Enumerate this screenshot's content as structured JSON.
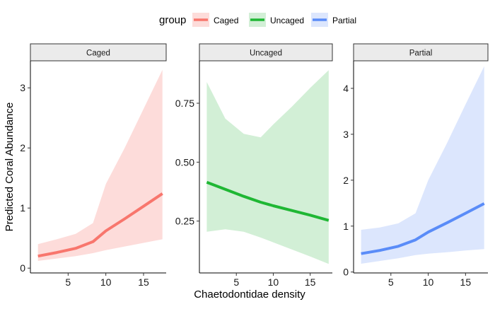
{
  "legend": {
    "title": "group",
    "items": [
      {
        "label": "Caged",
        "color": "#F8766D",
        "fill": "#FDDCDA"
      },
      {
        "label": "Uncaged",
        "color": "#1FB734",
        "fill": "#D2EFD6"
      },
      {
        "label": "Partial",
        "color": "#5A8CF8",
        "fill": "#DCE6FD"
      }
    ]
  },
  "ylabel": "Predicted Coral Abundance",
  "xlabel": "Chaetodontidae density",
  "chart_data": [
    {
      "type": "line",
      "panel": "Caged",
      "color": "#F8766D",
      "fill": "#FDDCDA",
      "x": [
        1.0,
        3.5,
        6.0,
        8.3,
        10.0,
        12.5,
        15.0,
        17.5
      ],
      "y": [
        0.2,
        0.26,
        0.33,
        0.44,
        0.62,
        0.82,
        1.03,
        1.24
      ],
      "lower": [
        0.12,
        0.16,
        0.2,
        0.25,
        0.3,
        0.36,
        0.42,
        0.48
      ],
      "upper": [
        0.4,
        0.48,
        0.57,
        0.75,
        1.4,
        2.0,
        2.65,
        3.3
      ],
      "xlim": [
        0.0,
        18.0
      ],
      "ylim": [
        -0.08,
        3.45
      ],
      "xticks": [
        5,
        10,
        15
      ],
      "yticks": [
        0,
        1,
        2,
        3
      ],
      "ytick_labels": [
        "0",
        "1",
        "2",
        "3"
      ]
    },
    {
      "type": "line",
      "panel": "Uncaged",
      "color": "#1FB734",
      "fill": "#D2EFD6",
      "x": [
        1.0,
        3.5,
        6.0,
        8.3,
        10.0,
        12.5,
        15.0,
        17.5
      ],
      "y": [
        0.415,
        0.385,
        0.355,
        0.33,
        0.315,
        0.295,
        0.275,
        0.253
      ],
      "lower": [
        0.205,
        0.215,
        0.205,
        0.18,
        0.16,
        0.13,
        0.1,
        0.068
      ],
      "upper": [
        0.84,
        0.685,
        0.62,
        0.605,
        0.66,
        0.735,
        0.815,
        0.89
      ],
      "xlim": [
        0.0,
        18.0
      ],
      "ylim": [
        0.03,
        0.93
      ],
      "xticks": [
        5,
        10,
        15
      ],
      "yticks": [
        0.25,
        0.5,
        0.75
      ],
      "ytick_labels": [
        "0.25",
        "0.50",
        "0.75"
      ]
    },
    {
      "type": "line",
      "panel": "Partial",
      "color": "#5A8CF8",
      "fill": "#DCE6FD",
      "x": [
        1.0,
        3.5,
        6.0,
        8.3,
        10.0,
        12.5,
        15.0,
        17.5
      ],
      "y": [
        0.4,
        0.47,
        0.56,
        0.7,
        0.87,
        1.07,
        1.28,
        1.49
      ],
      "lower": [
        0.18,
        0.24,
        0.3,
        0.37,
        0.4,
        0.43,
        0.47,
        0.5
      ],
      "upper": [
        0.92,
        0.97,
        1.06,
        1.28,
        2.0,
        2.8,
        3.65,
        4.48
      ],
      "xlim": [
        0.0,
        18.0
      ],
      "ylim": [
        -0.02,
        4.6
      ],
      "xticks": [
        5,
        10,
        15
      ],
      "yticks": [
        0,
        1,
        2,
        3,
        4
      ],
      "ytick_labels": [
        "0",
        "1",
        "2",
        "3",
        "4"
      ]
    }
  ]
}
